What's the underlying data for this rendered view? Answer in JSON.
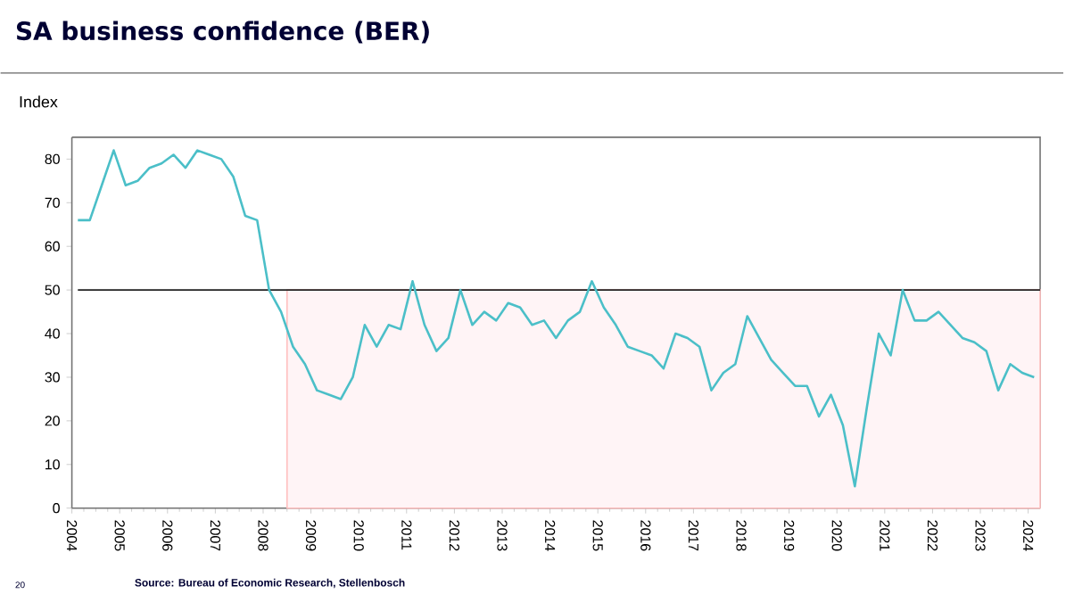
{
  "chart_data": {
    "type": "line",
    "title": "SA business confidence (BER)",
    "ylabel": "Index",
    "annotations": [
      "Source: Bureau of Economic Research, Stellenbosch",
      "20"
    ],
    "x": [
      2004.125,
      2004.375,
      2004.625,
      2004.875,
      2005.125,
      2005.375,
      2005.625,
      2005.875,
      2006.125,
      2006.375,
      2006.625,
      2006.875,
      2007.125,
      2007.375,
      2007.625,
      2007.875,
      2008.125,
      2008.375,
      2008.625,
      2008.875,
      2009.125,
      2009.375,
      2009.625,
      2009.875,
      2010.125,
      2010.375,
      2010.625,
      2010.875,
      2011.125,
      2011.375,
      2011.625,
      2011.875,
      2012.125,
      2012.375,
      2012.625,
      2012.875,
      2013.125,
      2013.375,
      2013.625,
      2013.875,
      2014.125,
      2014.375,
      2014.625,
      2014.875,
      2015.125,
      2015.375,
      2015.625,
      2015.875,
      2016.125,
      2016.375,
      2016.625,
      2016.875,
      2017.125,
      2017.375,
      2017.625,
      2017.875,
      2018.125,
      2018.375,
      2018.625,
      2018.875,
      2019.125,
      2019.375,
      2019.625,
      2019.875,
      2020.125,
      2020.375,
      2020.625,
      2020.875,
      2021.125,
      2021.375,
      2021.625,
      2021.875,
      2022.125,
      2022.375,
      2022.625,
      2022.875,
      2023.125,
      2023.375,
      2023.625,
      2023.875,
      2024.125
    ],
    "series": [
      {
        "color": "#4bbfc8",
        "values": [
          66,
          66,
          74,
          82,
          74,
          75,
          78,
          79,
          81,
          78,
          82,
          81,
          80,
          76,
          67,
          66,
          50,
          45,
          37,
          33,
          27,
          26,
          25,
          30,
          42,
          37,
          42,
          41,
          52,
          42,
          36,
          39,
          50,
          42,
          45,
          43,
          47,
          46,
          42,
          43,
          39,
          43,
          45,
          52,
          46,
          42,
          37,
          36,
          35,
          32,
          40,
          39,
          37,
          27,
          31,
          33,
          44,
          39,
          34,
          31,
          28,
          28,
          21,
          26,
          19,
          5,
          23,
          40,
          35,
          50,
          43,
          43,
          45,
          42,
          39,
          38,
          36,
          27,
          33,
          31,
          30
        ]
      }
    ],
    "xlim": [
      2004,
      2024.25
    ],
    "xticks": [
      2004,
      2005,
      2006,
      2007,
      2008,
      2009,
      2010,
      2011,
      2012,
      2013,
      2014,
      2015,
      2016,
      2017,
      2018,
      2019,
      2020,
      2021,
      2022,
      2023,
      2024
    ],
    "ylim": [
      0,
      85
    ],
    "yticks": [
      0,
      10,
      20,
      30,
      40,
      50,
      60,
      70,
      80
    ],
    "ref_lines": [
      {
        "axis": "y",
        "value": 50,
        "color": "#222222"
      }
    ],
    "bands": [
      {
        "axis": "x",
        "from": 2008.5,
        "to": 2024.25,
        "color": "#fff4f6"
      }
    ],
    "grid": false,
    "marker": "none",
    "line_style": "solid"
  }
}
